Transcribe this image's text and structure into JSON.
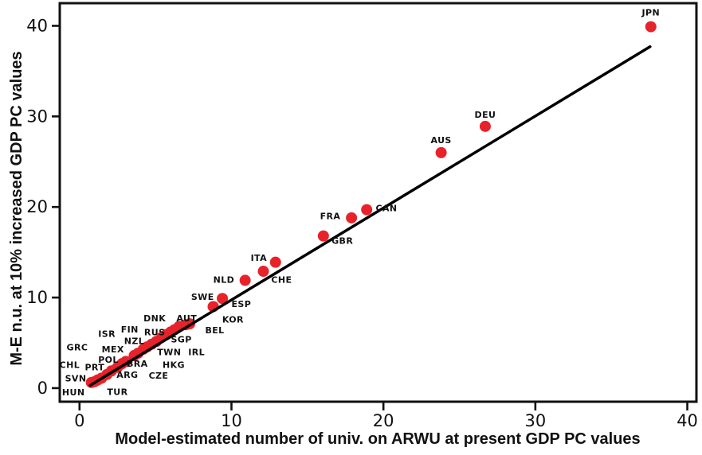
{
  "chart_data": {
    "type": "scatter",
    "title": "",
    "xlabel": "Model-estimated number of univ. on ARWU at present GDP PC values",
    "ylabel": "M-E n.u. at 10% increased GDP PC values",
    "xlim": [
      -1.3,
      40.6
    ],
    "ylim": [
      -1.5,
      42.5
    ],
    "x_ticks": [
      0,
      10,
      20,
      30,
      40
    ],
    "y_ticks": [
      0,
      10,
      20,
      30,
      40
    ],
    "grid": false,
    "legend_position": "none",
    "marker_color": "#e8222a",
    "axis_color": "#111111",
    "trend_line": {
      "x1": 0.7,
      "y1": 0.3,
      "x2": 37.55,
      "y2": 37.7,
      "color": "#000000",
      "width": 3.5
    },
    "points": [
      {
        "code": "JPN",
        "x": 37.6,
        "y": 39.9,
        "label_x": 37.6,
        "label_y": 41.5
      },
      {
        "code": "DEU",
        "x": 26.7,
        "y": 28.9,
        "label_x": 26.7,
        "label_y": 30.2
      },
      {
        "code": "AUS",
        "x": 23.8,
        "y": 26.0,
        "label_x": 23.8,
        "label_y": 27.4
      },
      {
        "code": "CAN",
        "x": 18.9,
        "y": 19.7,
        "label_x": 20.2,
        "label_y": 19.9
      },
      {
        "code": "FRA",
        "x": 17.9,
        "y": 18.8,
        "label_x": 16.5,
        "label_y": 19.0
      },
      {
        "code": "GBR",
        "x": 16.05,
        "y": 16.8,
        "label_x": 17.3,
        "label_y": 16.3
      },
      {
        "code": "ITA",
        "x": 12.9,
        "y": 13.9,
        "label_x": 11.8,
        "label_y": 14.4
      },
      {
        "code": "CHE",
        "x": 12.1,
        "y": 12.9,
        "label_x": 13.3,
        "label_y": 12.0
      },
      {
        "code": "NLD",
        "x": 10.9,
        "y": 11.9,
        "label_x": 9.5,
        "label_y": 12.0
      },
      {
        "code": "SWE",
        "x": 9.4,
        "y": 9.9,
        "label_x": 8.1,
        "label_y": 10.1
      },
      {
        "code": "ESP",
        "x": 8.8,
        "y": 9.0,
        "label_x": 10.65,
        "label_y": 9.3
      },
      {
        "code": "KOR",
        "x": 8.8,
        "y": 9.0,
        "label_x": 10.1,
        "label_y": 7.6
      },
      {
        "code": "BEL",
        "x": 7.25,
        "y": 7.1,
        "label_x": 8.9,
        "label_y": 6.4
      },
      {
        "code": "AUT",
        "x": 7.0,
        "y": 7.0,
        "label_x": 7.05,
        "label_y": 7.7
      },
      {
        "code": "DNK",
        "x": 6.55,
        "y": 6.8,
        "label_x": 4.95,
        "label_y": 7.7
      },
      {
        "code": "IRL",
        "x": 6.25,
        "y": 6.45,
        "label_x": 7.7,
        "label_y": 4.0
      },
      {
        "code": "RUS",
        "x": 6.0,
        "y": 6.2,
        "label_x": 4.95,
        "label_y": 6.2
      },
      {
        "code": "SGP",
        "x": 5.7,
        "y": 5.9,
        "label_x": 6.7,
        "label_y": 5.4
      },
      {
        "code": "FIN",
        "x": 5.4,
        "y": 5.6,
        "label_x": 3.3,
        "label_y": 6.5
      },
      {
        "code": "TWN",
        "x": 5.05,
        "y": 5.15,
        "label_x": 5.9,
        "label_y": 4.0
      },
      {
        "code": "HKG",
        "x": 4.75,
        "y": 4.85,
        "label_x": 6.2,
        "label_y": 2.6
      },
      {
        "code": "ISR",
        "x": 4.45,
        "y": 4.55,
        "label_x": 1.8,
        "label_y": 6.0
      },
      {
        "code": "NZL",
        "x": 4.2,
        "y": 4.3,
        "label_x": 3.6,
        "label_y": 5.2
      },
      {
        "code": "CZE",
        "x": 3.85,
        "y": 3.85,
        "label_x": 5.2,
        "label_y": 1.4
      },
      {
        "code": "BRA",
        "x": 3.6,
        "y": 3.6,
        "label_x": 3.8,
        "label_y": 2.7
      },
      {
        "code": "MEX",
        "x": 3.05,
        "y": 2.95,
        "label_x": 2.2,
        "label_y": 4.3
      },
      {
        "code": "POL",
        "x": 2.8,
        "y": 2.7,
        "label_x": 1.9,
        "label_y": 3.15
      },
      {
        "code": "ARG",
        "x": 2.5,
        "y": 2.3,
        "label_x": 3.15,
        "label_y": 1.5
      },
      {
        "code": "GRC",
        "x": 2.1,
        "y": 1.9,
        "label_x": -0.15,
        "label_y": 4.5
      },
      {
        "code": "PRT",
        "x": 1.8,
        "y": 1.5,
        "label_x": 1.0,
        "label_y": 2.3
      },
      {
        "code": "CHL",
        "x": 1.45,
        "y": 1.1,
        "label_x": -0.65,
        "label_y": 2.6
      },
      {
        "code": "SVN",
        "x": 1.2,
        "y": 0.9,
        "label_x": -0.25,
        "label_y": 1.1
      },
      {
        "code": "TUR",
        "x": 1.0,
        "y": 0.72,
        "label_x": 2.5,
        "label_y": -0.4
      },
      {
        "code": "HUN",
        "x": 0.78,
        "y": 0.62,
        "label_x": -0.4,
        "label_y": -0.45
      }
    ]
  }
}
